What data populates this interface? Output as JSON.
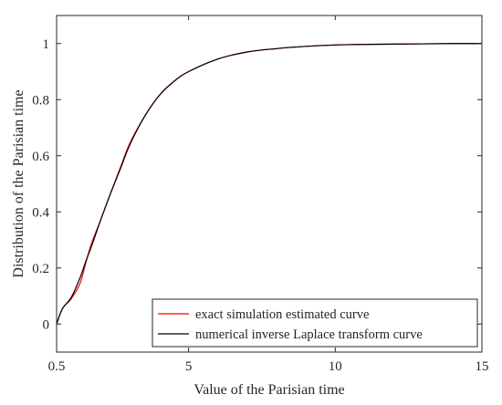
{
  "chart_data": {
    "type": "line",
    "xlabel": "Value of the Parisian time",
    "ylabel": "Distribution of the Parisian time",
    "xlim": [
      0.5,
      15
    ],
    "ylim": [
      -0.1,
      1.1
    ],
    "xticks": [
      0.5,
      5,
      10,
      15
    ],
    "xtick_labels": [
      "0.5",
      "5",
      "10",
      "15"
    ],
    "yticks": [
      0,
      0.2,
      0.4,
      0.6,
      0.8,
      1
    ],
    "ytick_labels": [
      "0",
      "0.2",
      "0.4",
      "0.6",
      "0.8",
      "1"
    ],
    "grid": false,
    "legend_position": "bottom-right",
    "series": [
      {
        "name": "exact simulation estimated curve",
        "color": "#ff0000",
        "x": [
          0.5,
          0.7,
          1.0,
          1.3,
          1.5,
          1.7,
          2.0,
          2.3,
          2.7,
          3.0,
          3.5,
          4.0,
          4.5,
          5.0,
          6.0,
          7.0,
          8.0,
          9.0,
          10.0,
          11.0,
          12.0,
          13.0,
          14.0,
          15.0
        ],
        "y": [
          0.0,
          0.055,
          0.09,
          0.145,
          0.22,
          0.29,
          0.37,
          0.455,
          0.565,
          0.645,
          0.74,
          0.815,
          0.865,
          0.9,
          0.945,
          0.97,
          0.982,
          0.99,
          0.995,
          0.997,
          0.998,
          0.999,
          1.0,
          1.0
        ]
      },
      {
        "name": "numerical inverse Laplace transform curve",
        "color": "#000000",
        "x": [
          0.5,
          0.7,
          1.0,
          1.3,
          1.5,
          1.7,
          2.0,
          2.3,
          2.7,
          3.0,
          3.5,
          4.0,
          4.5,
          5.0,
          6.0,
          7.0,
          8.0,
          9.0,
          10.0,
          11.0,
          12.0,
          13.0,
          14.0,
          15.0
        ],
        "y": [
          0.0,
          0.055,
          0.095,
          0.165,
          0.225,
          0.28,
          0.37,
          0.455,
          0.56,
          0.64,
          0.74,
          0.815,
          0.865,
          0.9,
          0.945,
          0.97,
          0.982,
          0.99,
          0.995,
          0.997,
          0.998,
          0.999,
          1.0,
          1.0
        ]
      }
    ]
  }
}
